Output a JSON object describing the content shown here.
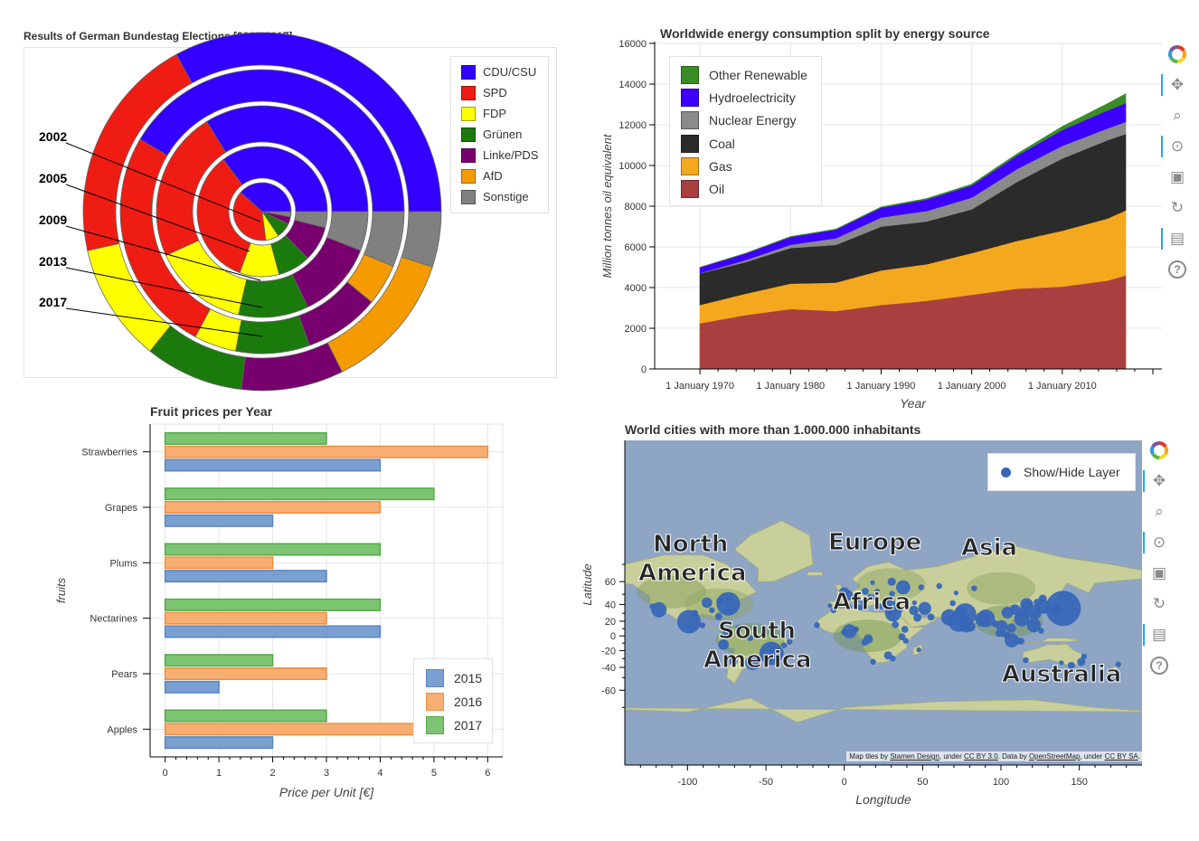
{
  "panels": {
    "elections": {
      "title": "Results of German Bundestag Elections [2002-2017]",
      "chart_data": {
        "type": "pie",
        "title": "Results of German Bundestag Elections [2002-2017]",
        "parties": [
          {
            "name": "CDU/CSU",
            "color": "#3300ff"
          },
          {
            "name": "SPD",
            "color": "#ee1c12"
          },
          {
            "name": "FDP",
            "color": "#ffff00"
          },
          {
            "name": "Grünen",
            "color": "#1b7a0c"
          },
          {
            "name": "Linke/PDS",
            "color": "#78006e"
          },
          {
            "name": "AfD",
            "color": "#f59b00"
          },
          {
            "name": "Sonstige",
            "color": "#808080"
          }
        ],
        "years": [
          "2002",
          "2005",
          "2009",
          "2013",
          "2017"
        ],
        "results_percent": {
          "2002": [
            38.5,
            38.5,
            7.4,
            8.6,
            4.0,
            0.0,
            3.0
          ],
          "2005": [
            35.2,
            34.2,
            9.8,
            8.1,
            8.7,
            0.0,
            4.0
          ],
          "2009": [
            33.8,
            23.0,
            14.6,
            10.7,
            11.9,
            0.0,
            6.0
          ],
          "2013": [
            41.5,
            25.7,
            4.8,
            8.4,
            8.6,
            4.7,
            6.3
          ],
          "2017": [
            32.9,
            20.5,
            10.7,
            8.9,
            9.2,
            12.6,
            5.0
          ]
        }
      }
    },
    "energy": {
      "title": "Worldwide energy consumption split by energy source",
      "chart_data": {
        "type": "area",
        "title": "Worldwide energy consumption split by energy source",
        "xlabel": "Year",
        "ylabel": "Million tonnes oil equivalent",
        "ylim": [
          0,
          16000
        ],
        "xlim": [
          1965,
          2021
        ],
        "yticks": [
          "0",
          "2000",
          "4000",
          "6000",
          "8000",
          "10000",
          "12000",
          "14000",
          "16000"
        ],
        "xticks": [
          {
            "value": 1970,
            "label": "1 January 1970"
          },
          {
            "value": 1980,
            "label": "1 January 1980"
          },
          {
            "value": 1990,
            "label": "1 January 1990"
          },
          {
            "value": 2000,
            "label": "1 January 2000"
          },
          {
            "value": 2010,
            "label": "1 January 2010"
          }
        ],
        "legend_position": "top-left",
        "x": [
          1970,
          1975,
          1980,
          1985,
          1990,
          1995,
          2000,
          2005,
          2010,
          2015,
          2017
        ],
        "series": [
          {
            "name": "Oil",
            "color": "#a8403f",
            "values": [
              2250,
              2650,
              2950,
              2850,
              3150,
              3350,
              3650,
              3950,
              4050,
              4350,
              4600
            ]
          },
          {
            "name": "Gas",
            "color": "#f4a81e",
            "values": [
              900,
              1050,
              1250,
              1400,
              1700,
              1800,
              2050,
              2350,
              2750,
              3050,
              3200
            ]
          },
          {
            "name": "Coal",
            "color": "#2b2b2b",
            "values": [
              1550,
              1550,
              1750,
              1850,
              2150,
              2100,
              2150,
              2900,
              3550,
              3850,
              3750
            ]
          },
          {
            "name": "Nuclear Energy",
            "color": "#8a8a8a",
            "values": [
              20,
              100,
              160,
              330,
              450,
              520,
              580,
              630,
              620,
              580,
              600
            ]
          },
          {
            "name": "Hydroelectricity",
            "color": "#3d00ff",
            "values": [
              270,
              320,
              380,
              420,
              480,
              560,
              600,
              660,
              780,
              880,
              920
            ]
          },
          {
            "name": "Other Renewable",
            "color": "#3a8c25",
            "values": [
              5,
              10,
              15,
              20,
              30,
              40,
              50,
              80,
              160,
              330,
              450
            ]
          }
        ]
      }
    },
    "fruits": {
      "title": "Fruit prices per Year",
      "chart_data": {
        "type": "bar",
        "orientation": "horizontal",
        "title": "Fruit prices per Year",
        "xlabel": "Price per Unit [€]",
        "ylabel": "fruits",
        "xlim": [
          -0.28,
          6.28
        ],
        "xticks": [
          "0",
          "1",
          "2",
          "3",
          "4",
          "5",
          "6"
        ],
        "categories": [
          "Strawberries",
          "Grapes",
          "Plums",
          "Nectarines",
          "Pears",
          "Apples"
        ],
        "legend_position": "bottom-right",
        "series": [
          {
            "name": "2015",
            "color": "#7aa0d2",
            "stroke": "#5a84c2",
            "values": [
              4,
              2,
              3,
              4,
              1,
              2
            ]
          },
          {
            "name": "2016",
            "color": "#f6ae72",
            "stroke": "#f08f3c",
            "values": [
              6,
              4,
              2,
              3,
              3,
              6
            ]
          },
          {
            "name": "2017",
            "color": "#7dc472",
            "stroke": "#55a948",
            "values": [
              3,
              5,
              4,
              4,
              2,
              3
            ]
          }
        ]
      }
    },
    "cities": {
      "title": "World cities with more than 1.000.000 inhabitants",
      "chart_data": {
        "type": "scatter",
        "title": "World cities with more than 1.000.000 inhabitants",
        "xlabel": "Longitude",
        "ylabel": "Latitude",
        "xlim": [
          -140,
          190
        ],
        "ylim": [
          -85,
          89
        ],
        "xticks": [
          "-100",
          "-50",
          "0",
          "50",
          "100",
          "150"
        ],
        "yticks": [
          "-60",
          "-40",
          "-20",
          "0",
          "20",
          "40",
          "60"
        ],
        "legend_position": "top-right",
        "series": [
          {
            "name": "Show/Hide Layer",
            "color": "#3867b8"
          }
        ],
        "point_size_meaning": "relative population",
        "points": [
          {
            "lon": 139.7,
            "lat": 35.7,
            "size": 3.0
          },
          {
            "lon": 127.0,
            "lat": 37.5,
            "size": 1.2
          },
          {
            "lon": 121.5,
            "lat": 31.2,
            "size": 1.2
          },
          {
            "lon": 116.4,
            "lat": 39.9,
            "size": 1.1
          },
          {
            "lon": 113.3,
            "lat": 23.1,
            "size": 1.3
          },
          {
            "lon": 106.6,
            "lat": 10.8,
            "size": 0.8
          },
          {
            "lon": 100.5,
            "lat": 13.7,
            "size": 1.0
          },
          {
            "lon": 106.8,
            "lat": -6.2,
            "size": 1.2
          },
          {
            "lon": 90.4,
            "lat": 23.7,
            "size": 1.5
          },
          {
            "lon": 88.4,
            "lat": 22.6,
            "size": 1.3
          },
          {
            "lon": 77.2,
            "lat": 28.6,
            "size": 1.9
          },
          {
            "lon": 72.9,
            "lat": 19.1,
            "size": 1.7
          },
          {
            "lon": 67.0,
            "lat": 24.9,
            "size": 1.4
          },
          {
            "lon": 121.0,
            "lat": 14.6,
            "size": 1.2
          },
          {
            "lon": 31.2,
            "lat": 30.0,
            "size": 1.4
          },
          {
            "lon": 3.4,
            "lat": 6.5,
            "size": 1.2
          },
          {
            "lon": 28.9,
            "lat": 41.0,
            "size": 1.0
          },
          {
            "lon": 37.6,
            "lat": 55.8,
            "size": 1.2
          },
          {
            "lon": -74.0,
            "lat": 40.7,
            "size": 2.0
          },
          {
            "lon": -118.2,
            "lat": 34.1,
            "size": 1.3
          },
          {
            "lon": -99.1,
            "lat": 19.4,
            "size": 2.0
          },
          {
            "lon": -87.6,
            "lat": 41.9,
            "size": 0.9
          },
          {
            "lon": -46.6,
            "lat": -23.5,
            "size": 2.0
          },
          {
            "lon": -43.2,
            "lat": -22.9,
            "size": 1.2
          },
          {
            "lon": -58.4,
            "lat": -34.6,
            "size": 1.3
          },
          {
            "lon": -77.0,
            "lat": -12.0,
            "size": 0.9
          },
          {
            "lon": -74.1,
            "lat": 4.7,
            "size": 0.9
          },
          {
            "lon": -70.6,
            "lat": -33.4,
            "size": 0.7
          },
          {
            "lon": 151.2,
            "lat": -33.9,
            "size": 0.7
          },
          {
            "lon": 144.9,
            "lat": -37.8,
            "size": 0.6
          },
          {
            "lon": 2.3,
            "lat": 48.9,
            "size": 0.9
          },
          {
            "lon": -0.1,
            "lat": 51.5,
            "size": 0.9
          },
          {
            "lon": 51.4,
            "lat": 35.7,
            "size": 1.1
          },
          {
            "lon": 44.4,
            "lat": 33.3,
            "size": 0.8
          },
          {
            "lon": 46.7,
            "lat": 24.7,
            "size": 0.7
          },
          {
            "lon": 55.3,
            "lat": 25.3,
            "size": 0.6
          },
          {
            "lon": 36.8,
            "lat": -1.3,
            "size": 0.6
          },
          {
            "lon": 28.0,
            "lat": -26.2,
            "size": 0.7
          },
          {
            "lon": 15.3,
            "lat": -4.3,
            "size": 0.8
          },
          {
            "lon": 18.4,
            "lat": -33.9,
            "size": 0.5
          },
          {
            "lon": -6.8,
            "lat": 33.6,
            "size": 0.5
          },
          {
            "lon": 13.4,
            "lat": 52.5,
            "size": 0.6
          },
          {
            "lon": 12.5,
            "lat": 41.9,
            "size": 0.5
          },
          {
            "lon": -3.7,
            "lat": 40.4,
            "size": 0.6
          },
          {
            "lon": 30.5,
            "lat": 50.4,
            "size": 0.5
          },
          {
            "lon": 60.6,
            "lat": 56.8,
            "size": 0.5
          },
          {
            "lon": 82.9,
            "lat": 55.0,
            "size": 0.5
          },
          {
            "lon": 49.1,
            "lat": 55.8,
            "size": 0.5
          },
          {
            "lon": 104.1,
            "lat": 30.7,
            "size": 1.0
          },
          {
            "lon": 108.9,
            "lat": 34.3,
            "size": 0.9
          },
          {
            "lon": 114.3,
            "lat": 30.6,
            "size": 1.0
          },
          {
            "lon": 117.2,
            "lat": 39.1,
            "size": 0.9
          },
          {
            "lon": 126.6,
            "lat": 45.8,
            "size": 0.7
          },
          {
            "lon": 123.4,
            "lat": 41.8,
            "size": 0.7
          },
          {
            "lon": 135.5,
            "lat": 34.7,
            "size": 0.9
          },
          {
            "lon": 80.3,
            "lat": 13.1,
            "size": 0.9
          },
          {
            "lon": 78.5,
            "lat": 17.4,
            "size": 0.9
          },
          {
            "lon": 77.6,
            "lat": 12.9,
            "size": 1.0
          },
          {
            "lon": 74.3,
            "lat": 31.5,
            "size": 1.0
          },
          {
            "lon": 101.7,
            "lat": 3.1,
            "size": 0.6
          },
          {
            "lon": 103.8,
            "lat": 1.4,
            "size": 0.6
          },
          {
            "lon": 96.2,
            "lat": 16.8,
            "size": 0.6
          },
          {
            "lon": -79.4,
            "lat": 43.7,
            "size": 0.6
          },
          {
            "lon": -73.6,
            "lat": 45.5,
            "size": 0.5
          },
          {
            "lon": -122.4,
            "lat": 37.8,
            "size": 0.5
          },
          {
            "lon": -95.4,
            "lat": 29.8,
            "size": 0.6
          },
          {
            "lon": -84.4,
            "lat": 33.7,
            "size": 0.5
          },
          {
            "lon": -80.2,
            "lat": 25.8,
            "size": 0.6
          },
          {
            "lon": -66.9,
            "lat": 10.5,
            "size": 0.6
          },
          {
            "lon": -90.5,
            "lat": 14.6,
            "size": 0.5
          },
          {
            "lon": -47.9,
            "lat": -15.8,
            "size": 0.5
          },
          {
            "lon": -38.5,
            "lat": -12.9,
            "size": 0.5
          },
          {
            "lon": -34.9,
            "lat": -8.1,
            "size": 0.5
          },
          {
            "lon": -60.0,
            "lat": -3.1,
            "size": 0.5
          },
          {
            "lon": -56.2,
            "lat": -34.9,
            "size": 0.5
          },
          {
            "lon": 7.5,
            "lat": 9.1,
            "size": 0.5
          },
          {
            "lon": -0.2,
            "lat": 5.6,
            "size": 0.5
          },
          {
            "lon": -17.4,
            "lat": 14.7,
            "size": 0.5
          },
          {
            "lon": 38.7,
            "lat": 9.0,
            "size": 0.6
          },
          {
            "lon": 32.6,
            "lat": 15.5,
            "size": 0.6
          },
          {
            "lon": 39.3,
            "lat": -6.8,
            "size": 0.5
          },
          {
            "lon": 13.2,
            "lat": -8.8,
            "size": 0.6
          },
          {
            "lon": 31.0,
            "lat": -29.9,
            "size": 0.5
          },
          {
            "lon": 47.5,
            "lat": -18.9,
            "size": 0.4
          },
          {
            "lon": 174.8,
            "lat": -36.8,
            "size": 0.5
          },
          {
            "lon": 115.9,
            "lat": -31.9,
            "size": 0.5
          },
          {
            "lon": 153.0,
            "lat": -27.5,
            "size": 0.5
          },
          {
            "lon": 138.6,
            "lat": -34.9,
            "size": 0.4
          },
          {
            "lon": 110.4,
            "lat": -7.0,
            "size": 0.6
          },
          {
            "lon": 112.7,
            "lat": -7.3,
            "size": 0.6
          },
          {
            "lon": 98.7,
            "lat": 3.6,
            "size": 0.6
          },
          {
            "lon": 125.6,
            "lat": 7.1,
            "size": 0.5
          },
          {
            "lon": 69.2,
            "lat": 41.3,
            "size": 0.5
          },
          {
            "lon": 71.4,
            "lat": 51.2,
            "size": 0.4
          },
          {
            "lon": 44.8,
            "lat": 41.7,
            "size": 0.4
          },
          {
            "lon": 35.5,
            "lat": 33.9,
            "size": 0.5
          },
          {
            "lon": 29.9,
            "lat": 31.2,
            "size": 0.6
          },
          {
            "lon": 10.2,
            "lat": 36.8,
            "size": 0.5
          },
          {
            "lon": 3.1,
            "lat": 36.8,
            "size": 0.5
          },
          {
            "lon": 19.0,
            "lat": 47.5,
            "size": 0.5
          },
          {
            "lon": 21.0,
            "lat": 52.2,
            "size": 0.5
          },
          {
            "lon": 18.1,
            "lat": 59.3,
            "size": 0.4
          },
          {
            "lon": 30.3,
            "lat": 59.9,
            "size": 0.7
          },
          {
            "lon": 16.4,
            "lat": 48.2,
            "size": 0.4
          },
          {
            "lon": 9.2,
            "lat": 45.5,
            "size": 0.5
          },
          {
            "lon": -9.1,
            "lat": 38.7,
            "size": 0.4
          },
          {
            "lon": 23.7,
            "lat": 38.0,
            "size": 0.5
          },
          {
            "lon": 26.1,
            "lat": 44.4,
            "size": 0.5
          }
        ]
      },
      "map_labels": [
        "North",
        "America",
        "Europe",
        "Asia",
        "Africa",
        "South",
        "America",
        "Australia"
      ],
      "attribution": {
        "part1": "Map tiles by ",
        "link1": "Stamen Design",
        "part2": ", under ",
        "link2": "CC BY 3.0",
        "part3": ". Data by ",
        "link3": "OpenStreetMap",
        "part4": ", under ",
        "link4": "CC BY SA",
        "part5": "."
      }
    }
  },
  "toolbar": {
    "icons": [
      "bokeh-logo-icon",
      "pan-icon",
      "box-zoom-icon",
      "wheel-zoom-icon",
      "save-icon",
      "reset-icon",
      "hover-icon",
      "help-icon"
    ]
  }
}
